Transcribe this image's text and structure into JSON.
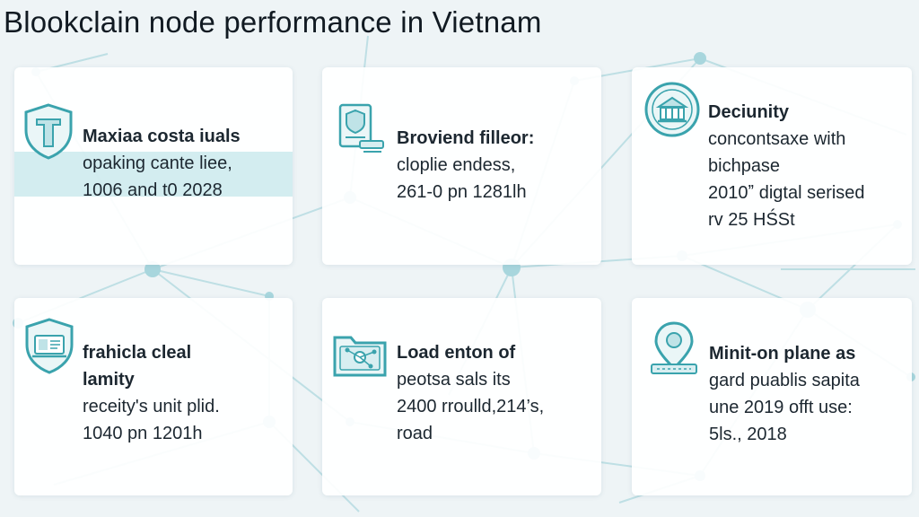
{
  "page": {
    "title": "Blookclain node performance in Vietnam"
  },
  "colors": {
    "background": "#eef4f6",
    "accent_teal": "#3aa3ad",
    "network_lines": "#b9dde3",
    "highlight_band": "#a0d7de",
    "card_background": "#ffffff"
  },
  "cards": [
    {
      "icon": "shield-icon",
      "lines": [
        "Maxiaa costa iuals",
        "opaking cante liee,",
        "1006 and t0 2028"
      ]
    },
    {
      "icon": "shield-document-icon",
      "lines": [
        "Broviend filleor:",
        "cloplie endess,",
        "261-0 pn 1281lh"
      ]
    },
    {
      "icon": "building-emblem-icon",
      "lines": [
        "Deciunity",
        "concontsaxe with",
        "bichpase",
        "2010ˮ digtal serised",
        "rv 25 HŚSt"
      ]
    },
    {
      "icon": "shield-laptop-icon",
      "lines": [
        "frahicla cleal",
        "lamity",
        "receity's unit plid.",
        "1040 pn 1201h"
      ]
    },
    {
      "icon": "folder-network-icon",
      "lines": [
        "Load enton of",
        "peotsa sals its",
        "2400 rroulld,214’s,",
        "road"
      ]
    },
    {
      "icon": "location-pin-icon",
      "lines": [
        "Minit-on plane as",
        "gard puablis sapita",
        "une 2019 offt use:",
        "5ls., 2018"
      ]
    }
  ]
}
